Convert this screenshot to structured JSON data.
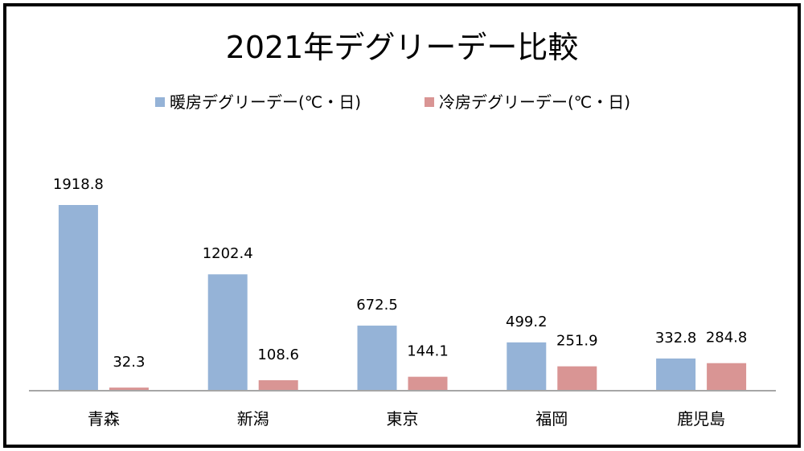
{
  "chart_data": {
    "type": "bar",
    "title": "2021年デグリーデー比較",
    "categories": [
      "青森",
      "新潟",
      "東京",
      "福岡",
      "鹿児島"
    ],
    "series": [
      {
        "name": "暖房デグリーデー(℃・日)",
        "color": "#95b3d7",
        "values": [
          1918.8,
          1202.4,
          672.5,
          499.2,
          332.8
        ]
      },
      {
        "name": "冷房デグリーデー(℃・日)",
        "color": "#d99594",
        "values": [
          32.3,
          108.6,
          144.1,
          251.9,
          284.8
        ]
      }
    ],
    "ylim": [
      0,
      1918.8
    ],
    "grid": false,
    "legend_position": "top"
  }
}
